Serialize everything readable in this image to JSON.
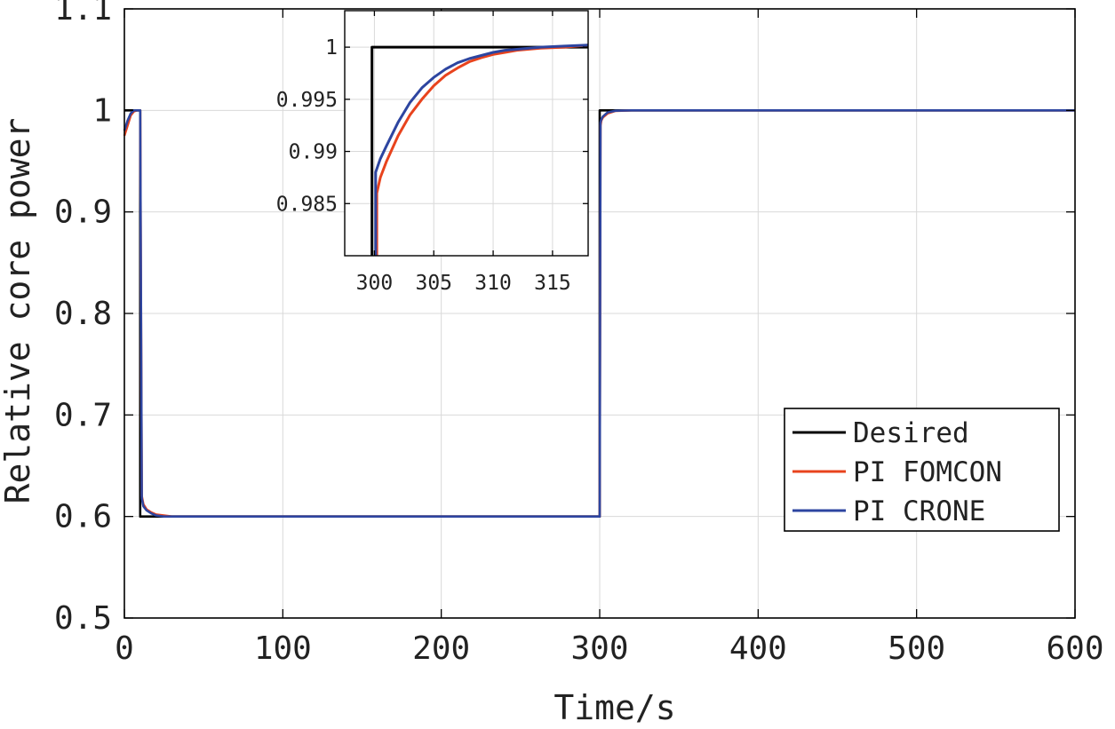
{
  "chart_data": [
    {
      "type": "line",
      "xlabel": "Time/s",
      "ylabel": "Relative core power",
      "xlim": [
        0,
        600
      ],
      "ylim": [
        0.5,
        1.1
      ],
      "xticks": [
        0,
        100,
        200,
        300,
        400,
        500,
        600
      ],
      "xtick_labels": [
        "0",
        "100",
        "200",
        "300",
        "400",
        "500",
        "600"
      ],
      "yticks": [
        0.5,
        0.6,
        0.7,
        0.8,
        0.9,
        1.0,
        1.1
      ],
      "ytick_labels": [
        "0.5",
        "0.6",
        "0.7",
        "0.8",
        "0.9",
        "1",
        "1.1"
      ],
      "grid": true,
      "legend_position": "lower-right",
      "series": [
        {
          "name": "Desired",
          "color": "#000000",
          "x": [
            0,
            10,
            10,
            300,
            300,
            600
          ],
          "y": [
            1.0,
            1.0,
            0.6,
            0.6,
            1.0,
            1.0
          ]
        },
        {
          "name": "PI FOMCON",
          "color": "#e8431d",
          "x": [
            0,
            2,
            4,
            6,
            8,
            10,
            11,
            12,
            14,
            17,
            20,
            25,
            30,
            40,
            300,
            300.5,
            301,
            302,
            305,
            310,
            320,
            330,
            600
          ],
          "y": [
            0.975,
            0.985,
            0.995,
            0.999,
            1.0,
            1.0,
            0.62,
            0.612,
            0.607,
            0.604,
            0.602,
            0.601,
            0.6,
            0.6,
            0.6,
            0.985,
            0.99,
            0.993,
            0.997,
            0.9995,
            1.0,
            1.0,
            1.0
          ]
        },
        {
          "name": "PI CRONE",
          "color": "#2d45a0",
          "x": [
            0,
            2,
            4,
            6,
            8,
            10,
            11,
            12,
            14,
            17,
            20,
            25,
            30,
            40,
            300,
            300.5,
            301,
            302,
            305,
            310,
            320,
            330,
            600
          ],
          "y": [
            0.98,
            0.99,
            0.997,
            1.0,
            1.0,
            1.0,
            0.618,
            0.61,
            0.606,
            0.603,
            0.601,
            0.6,
            0.6,
            0.6,
            0.6,
            0.988,
            0.991,
            0.994,
            0.998,
            0.9997,
            1.0,
            1.0,
            1.0
          ]
        }
      ]
    },
    {
      "type": "line",
      "xlim": [
        297.5,
        318
      ],
      "ylim": [
        0.98,
        1.0035
      ],
      "xticks": [
        300,
        305,
        310,
        315
      ],
      "xtick_labels": [
        "300",
        "305",
        "310",
        "315"
      ],
      "yticks": [
        0.985,
        0.99,
        0.995,
        1.0
      ],
      "ytick_labels": [
        "0.985",
        "0.99",
        "0.995",
        "1"
      ],
      "grid": true,
      "series": [
        {
          "name": "Desired",
          "color": "#000000",
          "x": [
            299.8,
            299.8,
            318
          ],
          "y": [
            0.98,
            1.0,
            1.0
          ]
        },
        {
          "name": "PI FOMCON",
          "color": "#e8431d",
          "x": [
            300.2,
            300.2,
            300.5,
            301,
            302,
            303,
            304,
            305,
            306,
            307,
            308,
            309,
            310,
            311,
            312,
            314,
            316,
            318
          ],
          "y": [
            0.98,
            0.986,
            0.9875,
            0.989,
            0.9915,
            0.9935,
            0.995,
            0.9963,
            0.9973,
            0.998,
            0.9986,
            0.999,
            0.9993,
            0.9995,
            0.9997,
            0.9999,
            1.0,
            1.0002
          ]
        },
        {
          "name": "PI CRONE",
          "color": "#2d45a0",
          "x": [
            300.1,
            300.1,
            300.5,
            301,
            302,
            303,
            304,
            305,
            306,
            307,
            308,
            309,
            310,
            311,
            312,
            314,
            316,
            318
          ],
          "y": [
            0.98,
            0.988,
            0.9893,
            0.9905,
            0.9928,
            0.9947,
            0.9961,
            0.9971,
            0.9979,
            0.9985,
            0.9989,
            0.9992,
            0.9995,
            0.9997,
            0.9998,
            1.0,
            1.0001,
            1.0002
          ]
        }
      ]
    }
  ]
}
